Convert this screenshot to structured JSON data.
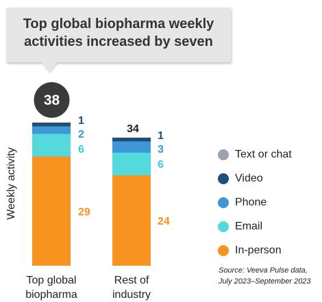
{
  "callout": {
    "line1": "Top global biopharma weekly",
    "line2": "activities increased by seven"
  },
  "chart_data": {
    "type": "bar",
    "stacked": true,
    "categories": [
      "Top global biopharma",
      "Rest of industry"
    ],
    "category_lines": [
      [
        "Top global",
        "biopharma"
      ],
      [
        "Rest of",
        "industry"
      ]
    ],
    "totals": [
      38,
      34
    ],
    "ylabel": "Weekly activity",
    "ylim": [
      0,
      40
    ],
    "series": [
      {
        "name": "In-person",
        "values": [
          29,
          24
        ],
        "color": "#f7931e"
      },
      {
        "name": "Email",
        "values": [
          6,
          6
        ],
        "color": "#54d9dc"
      },
      {
        "name": "Phone",
        "values": [
          2,
          3
        ],
        "color": "#3e97d7"
      },
      {
        "name": "Video",
        "values": [
          1,
          1
        ],
        "color": "#1f4e79"
      },
      {
        "name": "Text or chat",
        "values": [
          0,
          0
        ],
        "color": "#9aa3b0"
      }
    ],
    "label_colors": {
      "Video": "#1f4e79",
      "Phone": "#3a96d0",
      "Email": "#35cfd6",
      "In-person": "#f7931e"
    },
    "total_badge_color": "#3a3a3a",
    "grid": false,
    "legend_position": "right"
  },
  "legend": [
    {
      "label": "Text or chat",
      "color": "#9aa3b0"
    },
    {
      "label": "Video",
      "color": "#1f4e79"
    },
    {
      "label": "Phone",
      "color": "#3e97d7"
    },
    {
      "label": "Email",
      "color": "#54d9dc"
    },
    {
      "label": "In-person",
      "color": "#f7931e"
    }
  ],
  "source": {
    "line1": "Source: Veeva Pulse data,",
    "line2": "July 2023–September 2023"
  }
}
